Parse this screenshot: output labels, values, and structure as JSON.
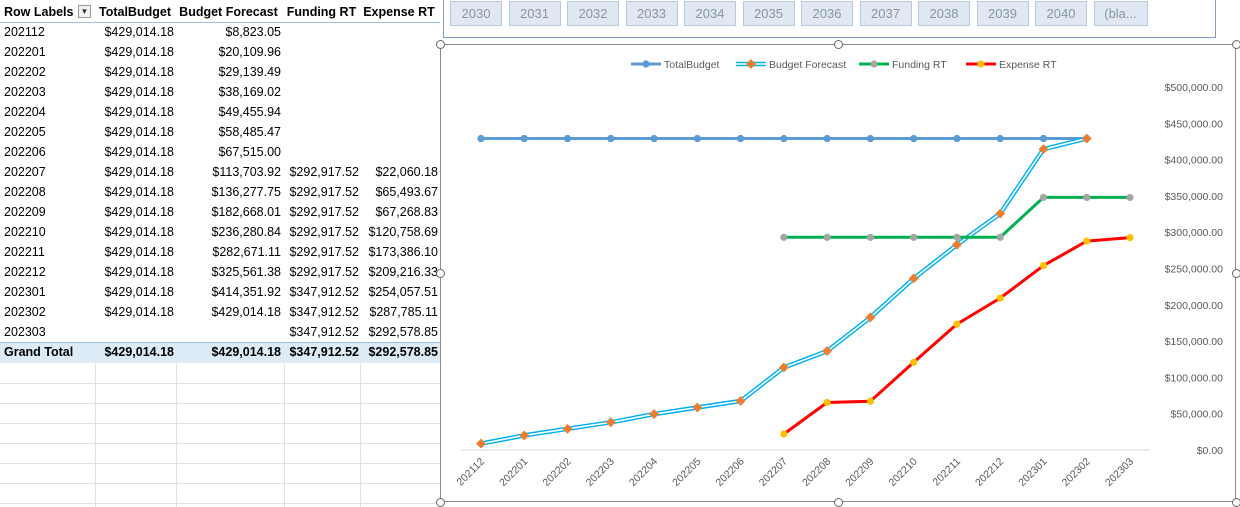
{
  "pivot": {
    "headers": [
      "Row Labels",
      "TotalBudget",
      "Budget Forecast",
      "Funding RT",
      "Expense RT"
    ],
    "rows": [
      [
        "202112",
        "$429,014.18",
        "$8,823.05",
        "",
        ""
      ],
      [
        "202201",
        "$429,014.18",
        "$20,109.96",
        "",
        ""
      ],
      [
        "202202",
        "$429,014.18",
        "$29,139.49",
        "",
        ""
      ],
      [
        "202203",
        "$429,014.18",
        "$38,169.02",
        "",
        ""
      ],
      [
        "202204",
        "$429,014.18",
        "$49,455.94",
        "",
        ""
      ],
      [
        "202205",
        "$429,014.18",
        "$58,485.47",
        "",
        ""
      ],
      [
        "202206",
        "$429,014.18",
        "$67,515.00",
        "",
        ""
      ],
      [
        "202207",
        "$429,014.18",
        "$113,703.92",
        "$292,917.52",
        "$22,060.18"
      ],
      [
        "202208",
        "$429,014.18",
        "$136,277.75",
        "$292,917.52",
        "$65,493.67"
      ],
      [
        "202209",
        "$429,014.18",
        "$182,668.01",
        "$292,917.52",
        "$67,268.83"
      ],
      [
        "202210",
        "$429,014.18",
        "$236,280.84",
        "$292,917.52",
        "$120,758.69"
      ],
      [
        "202211",
        "$429,014.18",
        "$282,671.11",
        "$292,917.52",
        "$173,386.10"
      ],
      [
        "202212",
        "$429,014.18",
        "$325,561.38",
        "$292,917.52",
        "$209,216.33"
      ],
      [
        "202301",
        "$429,014.18",
        "$414,351.92",
        "$347,912.52",
        "$254,057.51"
      ],
      [
        "202302",
        "$429,014.18",
        "$429,014.18",
        "$347,912.52",
        "$287,785.11"
      ],
      [
        "202303",
        "",
        "",
        "$347,912.52",
        "$292,578.85"
      ]
    ],
    "grand_total": [
      "Grand Total",
      "$429,014.18",
      "$429,014.18",
      "$347,912.52",
      "$292,578.85"
    ],
    "filter_icon": "dropdown-filter-icon"
  },
  "slicer": {
    "items": [
      "2030",
      "2031",
      "2032",
      "2033",
      "2034",
      "2035",
      "2036",
      "2037",
      "2038",
      "2039",
      "2040",
      "(bla..."
    ]
  },
  "chart_data": {
    "type": "line",
    "categories": [
      "202112",
      "202201",
      "202202",
      "202203",
      "202204",
      "202205",
      "202206",
      "202207",
      "202208",
      "202209",
      "202210",
      "202211",
      "202212",
      "202301",
      "202302",
      "202303"
    ],
    "series": [
      {
        "name": "TotalBudget",
        "color": "#5b9bd5",
        "values": [
          429014.18,
          429014.18,
          429014.18,
          429014.18,
          429014.18,
          429014.18,
          429014.18,
          429014.18,
          429014.18,
          429014.18,
          429014.18,
          429014.18,
          429014.18,
          429014.18,
          429014.18,
          null
        ]
      },
      {
        "name": "Budget Forecast",
        "color": "#00b0f0",
        "marker_color": "#ed7d31",
        "values": [
          8823.05,
          20109.96,
          29139.49,
          38169.02,
          49455.94,
          58485.47,
          67515.0,
          113703.92,
          136277.75,
          182668.01,
          236280.84,
          282671.11,
          325561.38,
          414351.92,
          429014.18,
          null
        ]
      },
      {
        "name": "Funding RT",
        "color": "#00b050",
        "marker_color": "#a5a5a5",
        "values": [
          null,
          null,
          null,
          null,
          null,
          null,
          null,
          292917.52,
          292917.52,
          292917.52,
          292917.52,
          292917.52,
          292917.52,
          347912.52,
          347912.52,
          347912.52
        ]
      },
      {
        "name": "Expense RT",
        "color": "#ff0000",
        "marker_color": "#ffc000",
        "values": [
          null,
          null,
          null,
          null,
          null,
          null,
          null,
          22060.18,
          65493.67,
          67268.83,
          120758.69,
          173386.1,
          209216.33,
          254057.51,
          287785.11,
          292578.85
        ]
      }
    ],
    "ylim": [
      0,
      500000
    ],
    "ytick_values": [
      0,
      50000,
      100000,
      150000,
      200000,
      250000,
      300000,
      350000,
      400000,
      450000,
      500000
    ],
    "ytick_labels": [
      "$0.00",
      "$50,000.00",
      "$100,000.00",
      "$150,000.00",
      "$200,000.00",
      "$250,000.00",
      "$300,000.00",
      "$350,000.00",
      "$400,000.00",
      "$450,000.00",
      "$500,000.00"
    ],
    "legend_position": "top",
    "y_axis_side": "right",
    "grid": false
  }
}
